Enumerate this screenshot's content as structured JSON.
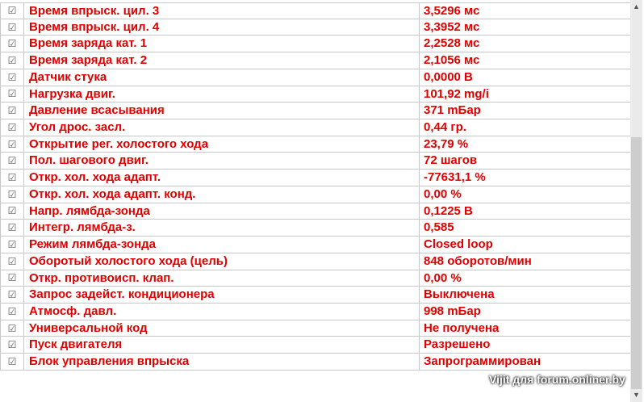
{
  "rows": [
    {
      "name": "Время впрыск. цил. 3",
      "value": "3,5296 мс"
    },
    {
      "name": "Время впрыск. цил. 4",
      "value": "3,3952 мс"
    },
    {
      "name": "Время заряда кат. 1",
      "value": "2,2528 мс"
    },
    {
      "name": "Время заряда кат. 2",
      "value": "2,1056 мс"
    },
    {
      "name": "Датчик стука",
      "value": "0,0000 В"
    },
    {
      "name": "Нагрузка двиг.",
      "value": "101,92 mg/i"
    },
    {
      "name": "Давление всасывания",
      "value": "371 mБар"
    },
    {
      "name": "Угол дрос. засл.",
      "value": "0,44 гр."
    },
    {
      "name": "Открытие рег. холостого хода",
      "value": "23,79 %"
    },
    {
      "name": "Пол. шагового двиг.",
      "value": "72 шагов"
    },
    {
      "name": "Откр. хол. хода адапт.",
      "value": "-77631,1 %"
    },
    {
      "name": "Откр. хол. хода адапт. конд.",
      "value": "0,00 %"
    },
    {
      "name": "Напр. лямбда-зонда",
      "value": "0,1225 В"
    },
    {
      "name": "Интегр. лямбда-з.",
      "value": "0,585"
    },
    {
      "name": "Режим лямбда-зонда",
      "value": "Closed loop"
    },
    {
      "name": "Оборотый холостого хода (цель)",
      "value": "848 оборотов/мин"
    },
    {
      "name": "Откр. противоисп. клап.",
      "value": "0,00 %"
    },
    {
      "name": "Запрос задейст. кондиционера",
      "value": "Выключена"
    },
    {
      "name": "Атмосф. давл.",
      "value": "998 mБар"
    },
    {
      "name": "Универсальной код",
      "value": "Не получена"
    },
    {
      "name": "Пуск двигателя",
      "value": "Разрешено"
    },
    {
      "name": "Блок управления впрыска",
      "value": "Запрограммирован"
    }
  ],
  "checkbox_glyph": "☑",
  "text_color": "#e00000",
  "watermark": "Vijit для forum.onliner.by"
}
